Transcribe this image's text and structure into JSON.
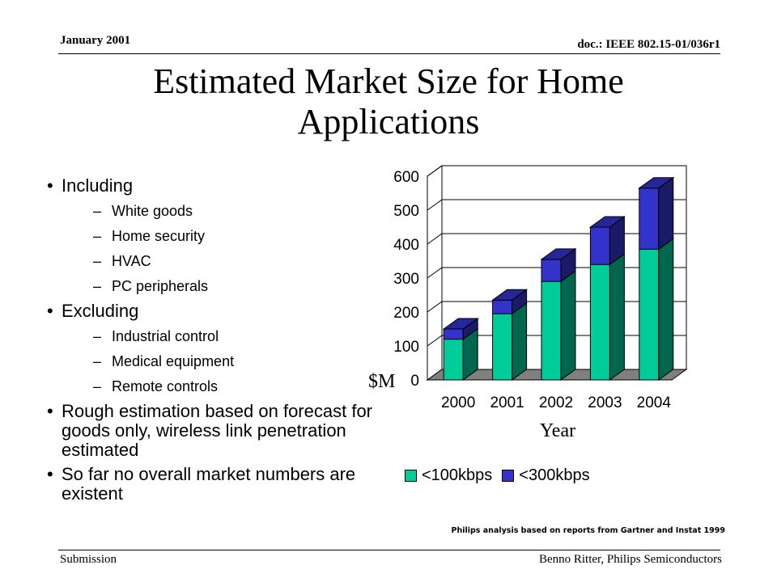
{
  "header": {
    "date": "January 2001",
    "doc_id": "doc.: IEEE 802.15-01/036r1"
  },
  "title": "Estimated Market Size for Home Applications",
  "bullets": [
    {
      "text": "Including",
      "sub": [
        "White goods",
        "Home security",
        "HVAC",
        "PC peripherals"
      ]
    },
    {
      "text": "Excluding",
      "sub": [
        "Industrial control",
        "Medical equipment",
        "Remote controls"
      ]
    },
    {
      "text": "Rough estimation based on forecast for goods only, wireless link penetration estimated",
      "sub": []
    },
    {
      "text": "So far no overall market numbers are existent",
      "sub": []
    }
  ],
  "chart_data": {
    "type": "bar",
    "stacked": true,
    "categories": [
      "2000",
      "2001",
      "2002",
      "2003",
      "2004"
    ],
    "series": [
      {
        "name": "<100kbps",
        "values": [
          120,
          195,
          290,
          340,
          385
        ],
        "color": "#00CC99"
      },
      {
        "name": "<300kbps",
        "values": [
          30,
          40,
          65,
          110,
          180
        ],
        "color": "#3333CC"
      }
    ],
    "xlabel": "Year",
    "ylabel": "$M",
    "ylim": [
      0,
      600
    ],
    "yticks": [
      0,
      100,
      200,
      300,
      400,
      500,
      600
    ],
    "grid": true,
    "legend": "bottom"
  },
  "note": "Philips analysis based on reports from Gartner and Instat 1999",
  "footer": {
    "left": "Submission",
    "right": "Benno Ritter, Philips Semiconductors"
  }
}
